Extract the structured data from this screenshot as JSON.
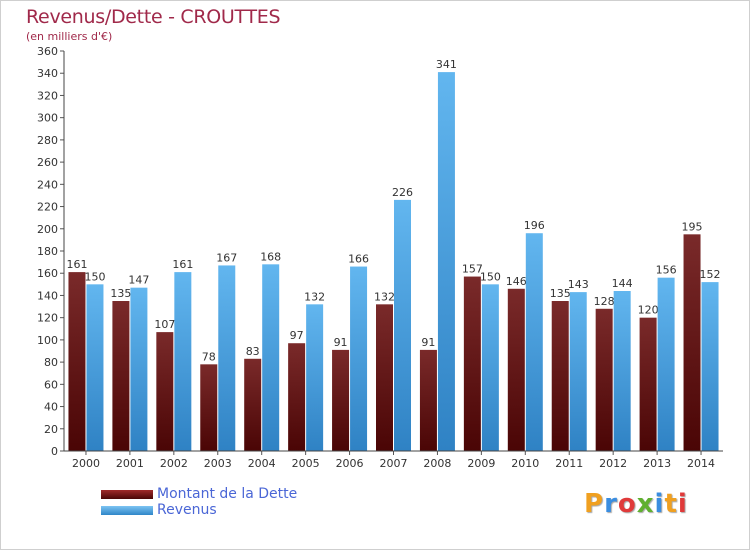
{
  "title": "Revenus/Dette - CROUTTES",
  "subtitle": "(en milliers d'€)",
  "logo_text": "Proxiti",
  "colors": {
    "dette": "#7a1414",
    "revenus": "#4da6e6",
    "title": "#a0294a",
    "legend_text": "#4a66d6"
  },
  "chart_data": {
    "type": "bar",
    "title": "Revenus/Dette - CROUTTES",
    "subtitle": "(en milliers d'€)",
    "xlabel": "",
    "ylabel": "",
    "ylim": [
      0,
      360
    ],
    "y_ticks": [
      0,
      20,
      40,
      60,
      80,
      100,
      120,
      140,
      160,
      180,
      200,
      220,
      240,
      260,
      280,
      300,
      320,
      340,
      360
    ],
    "grid": false,
    "legend_position": "bottom-left",
    "categories": [
      "2000",
      "2001",
      "2002",
      "2003",
      "2004",
      "2005",
      "2006",
      "2007",
      "2008",
      "2009",
      "2010",
      "2011",
      "2012",
      "2013",
      "2014"
    ],
    "series": [
      {
        "name": "Montant de la Dette",
        "color": "#7a1414",
        "values": [
          161,
          135,
          107,
          78,
          83,
          97,
          91,
          132,
          91,
          157,
          146,
          135,
          128,
          120,
          195
        ]
      },
      {
        "name": "Revenus",
        "color": "#4da6e6",
        "values": [
          150,
          147,
          161,
          167,
          168,
          132,
          166,
          226,
          341,
          150,
          196,
          143,
          144,
          156,
          152
        ]
      }
    ]
  }
}
